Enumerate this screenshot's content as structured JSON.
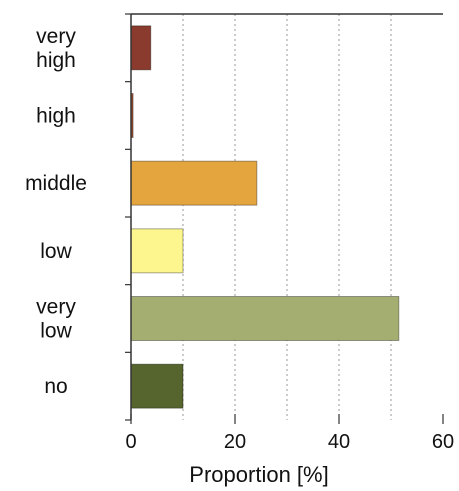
{
  "chart_data": {
    "type": "bar",
    "orientation": "horizontal",
    "categories": [
      [
        "very",
        "high"
      ],
      [
        "high"
      ],
      [
        "middle"
      ],
      [
        "low"
      ],
      [
        "very",
        "low"
      ],
      [
        "no"
      ]
    ],
    "values": [
      3.8,
      0.4,
      24.2,
      10.0,
      51.5,
      10.0
    ],
    "colors": [
      "#8b3a2e",
      "#a5502e",
      "#e4a53f",
      "#fdf58e",
      "#a3ae70",
      "#56652e"
    ],
    "xlabel": "Proportion [%]",
    "xlim": [
      0,
      60
    ],
    "xticks": [
      0,
      20,
      40,
      60
    ],
    "grid": "vertical-dashed",
    "legend": "none"
  }
}
